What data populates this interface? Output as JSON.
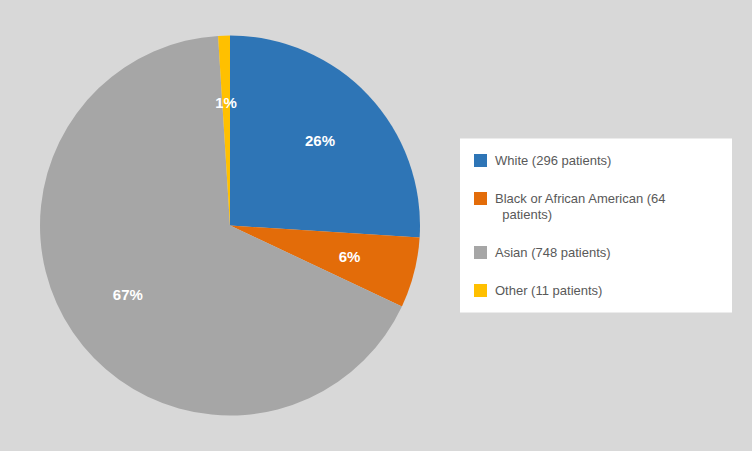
{
  "chart_data": {
    "type": "pie",
    "categories": [
      "White (296 patients)",
      "Black or African American (64\n  patients)",
      "Asian (748 patients)",
      "Other (11 patients)"
    ],
    "values": [
      26,
      6,
      67,
      1
    ],
    "value_labels": [
      "26%",
      "6%",
      "67%",
      "1%"
    ],
    "colors": [
      "#2E75B6",
      "#E36C09",
      "#A6A6A6",
      "#FFC000"
    ],
    "data_labels": true,
    "legend": "right"
  }
}
